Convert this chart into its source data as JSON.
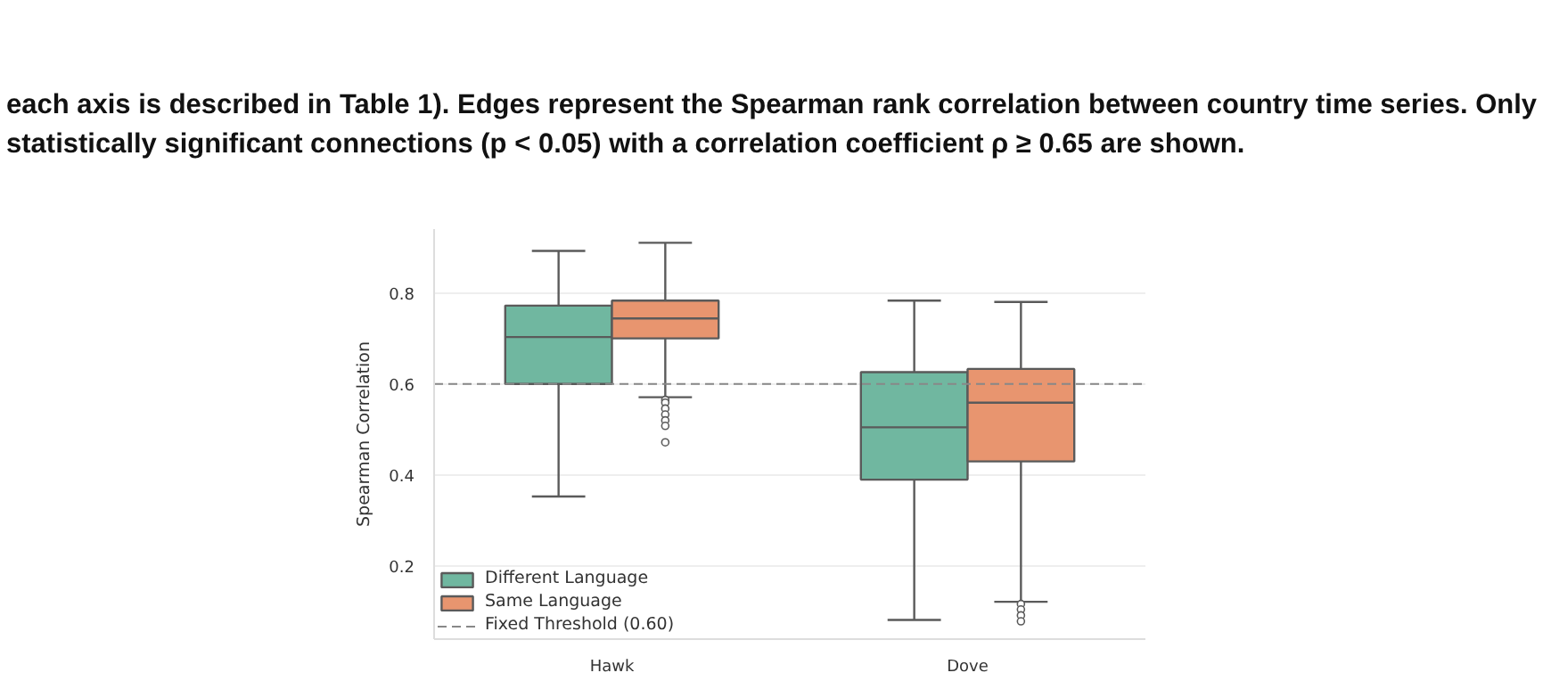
{
  "chart_data": {
    "type": "box",
    "title": "each axis is described in Table 1). Edges represent the Spearman rank correlation between country time series. Only statistically significant connections (p < 0.05) with a correlation coefficient ρ ≥ 0.65 are shown.",
    "ylabel": "Spearman Correlation",
    "categories": [
      "Hawk",
      "Dove"
    ],
    "series": [
      {
        "name": "Different Language",
        "color": "#70b7a0",
        "boxes": [
          {
            "low": 0.353,
            "q1": 0.6,
            "median": 0.703,
            "q3": 0.772,
            "high": 0.892
          },
          {
            "low": 0.082,
            "q1": 0.39,
            "median": 0.505,
            "q3": 0.626,
            "high": 0.783
          }
        ]
      },
      {
        "name": "Same Language",
        "color": "#e8956f",
        "boxes": [
          {
            "low": 0.571,
            "q1": 0.7,
            "median": 0.744,
            "q3": 0.783,
            "high": 0.91,
            "outliers": [
              0.565,
              0.559,
              0.546,
              0.533,
              0.52,
              0.508,
              0.472
            ]
          },
          {
            "low": 0.122,
            "q1": 0.43,
            "median": 0.559,
            "q3": 0.633,
            "high": 0.78,
            "outliers": [
              0.117,
              0.105,
              0.092,
              0.079
            ]
          }
        ]
      }
    ],
    "ylim": [
      0.04,
      0.94
    ],
    "yticks": [
      0.2,
      0.4,
      0.6,
      0.8
    ],
    "ref_lines": [
      {
        "axis": "y",
        "value": 0.6,
        "label": "Fixed Threshold (0.60)",
        "color": "#888888",
        "line_style": "dashed"
      }
    ],
    "grid": "y",
    "legend": "bottom left"
  }
}
